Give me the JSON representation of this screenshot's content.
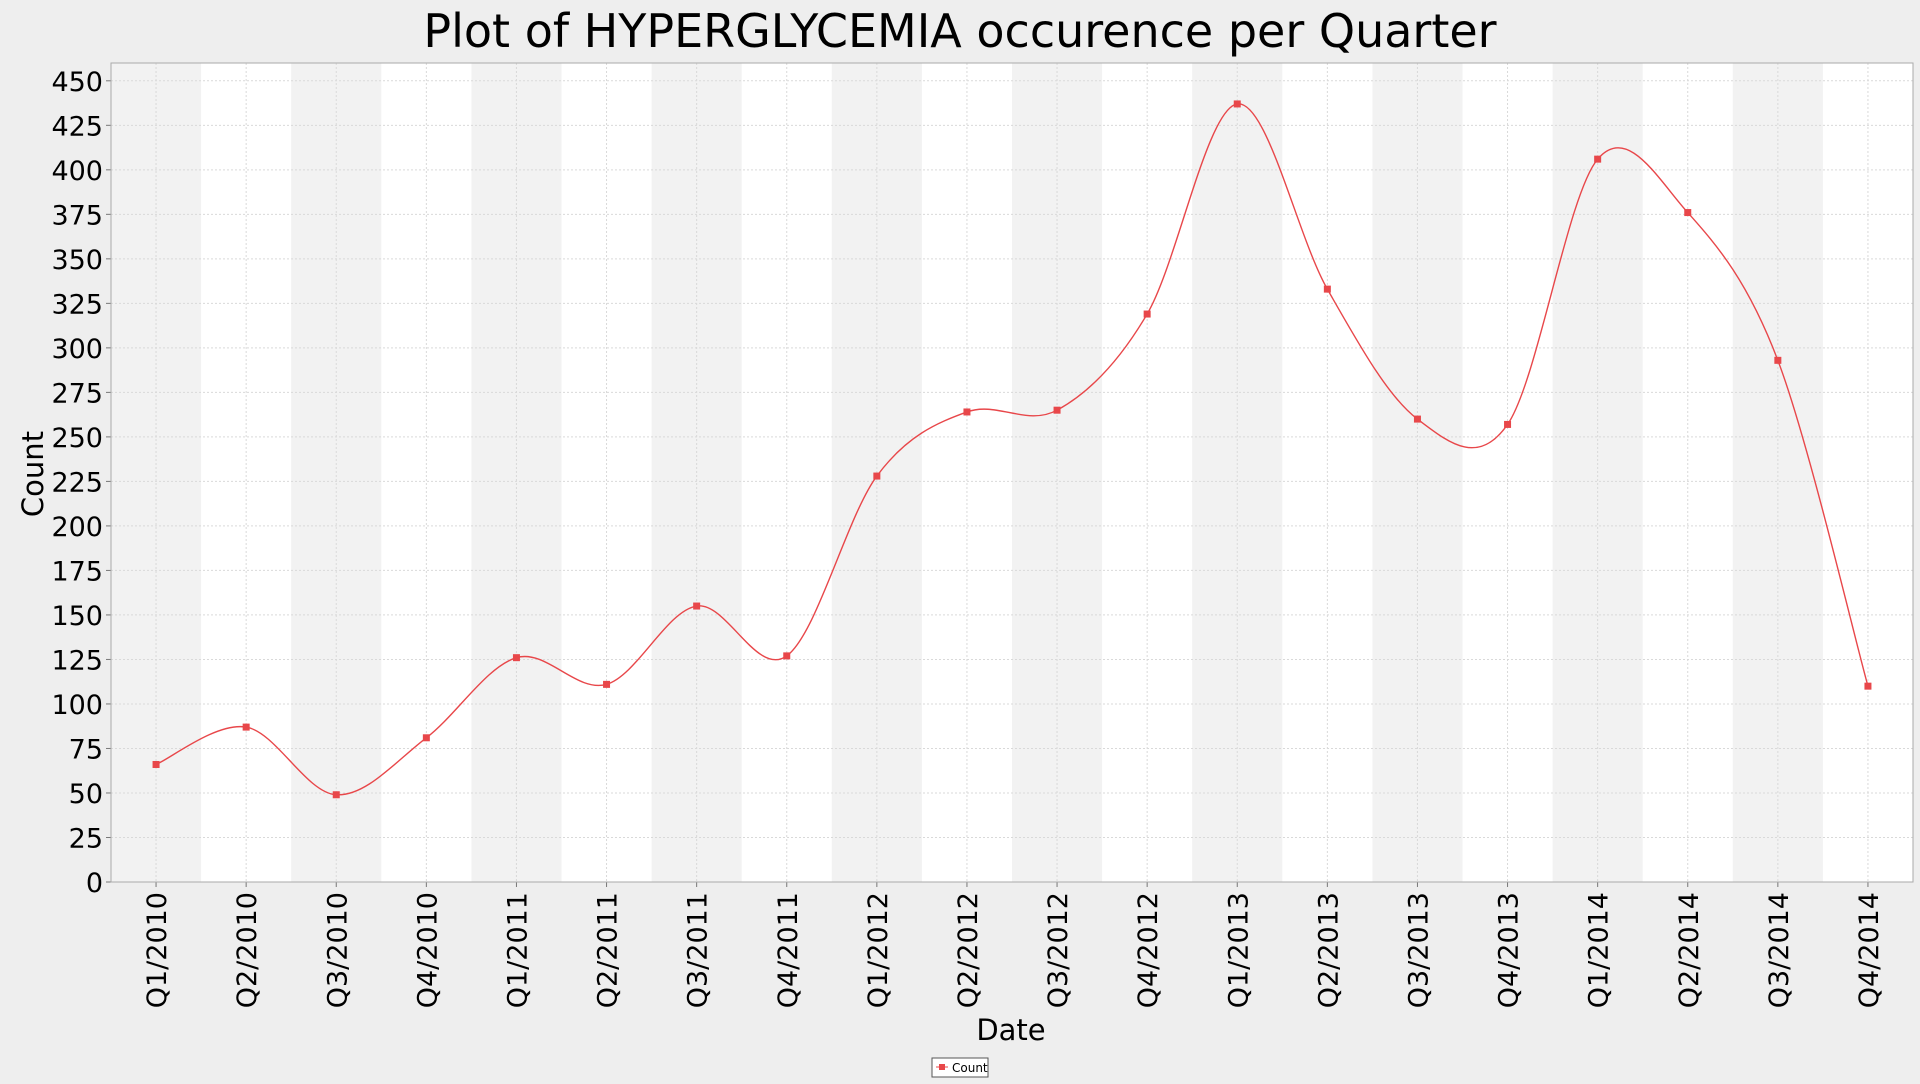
{
  "chart_data": {
    "type": "line",
    "title": "Plot of HYPERGLYCEMIA occurence per Quarter",
    "xlabel": "Date",
    "ylabel": "Count",
    "categories": [
      "Q1/2010",
      "Q2/2010",
      "Q3/2010",
      "Q4/2010",
      "Q1/2011",
      "Q2/2011",
      "Q3/2011",
      "Q4/2011",
      "Q1/2012",
      "Q2/2012",
      "Q3/2012",
      "Q4/2012",
      "Q1/2013",
      "Q2/2013",
      "Q3/2013",
      "Q4/2013",
      "Q1/2014",
      "Q2/2014",
      "Q3/2014",
      "Q4/2014"
    ],
    "series": [
      {
        "name": "Count",
        "color": "#e8474a",
        "values": [
          66,
          87,
          49,
          81,
          126,
          111,
          155,
          127,
          228,
          264,
          265,
          319,
          437,
          333,
          260,
          257,
          406,
          376,
          293,
          110
        ]
      }
    ],
    "ylim": [
      0,
      460
    ],
    "yticks": [
      0,
      25,
      50,
      75,
      100,
      125,
      150,
      175,
      200,
      225,
      250,
      275,
      300,
      325,
      350,
      375,
      400,
      425,
      450
    ],
    "grid": true,
    "smooth": true,
    "alternating_bands": true,
    "legend_position": "bottom-center",
    "colors": {
      "page_background": "#eeeeee",
      "plot_background": "#ffffff",
      "band": "#f2f2f2",
      "grid": "#d9d9d9",
      "line": "#e8474a"
    }
  }
}
